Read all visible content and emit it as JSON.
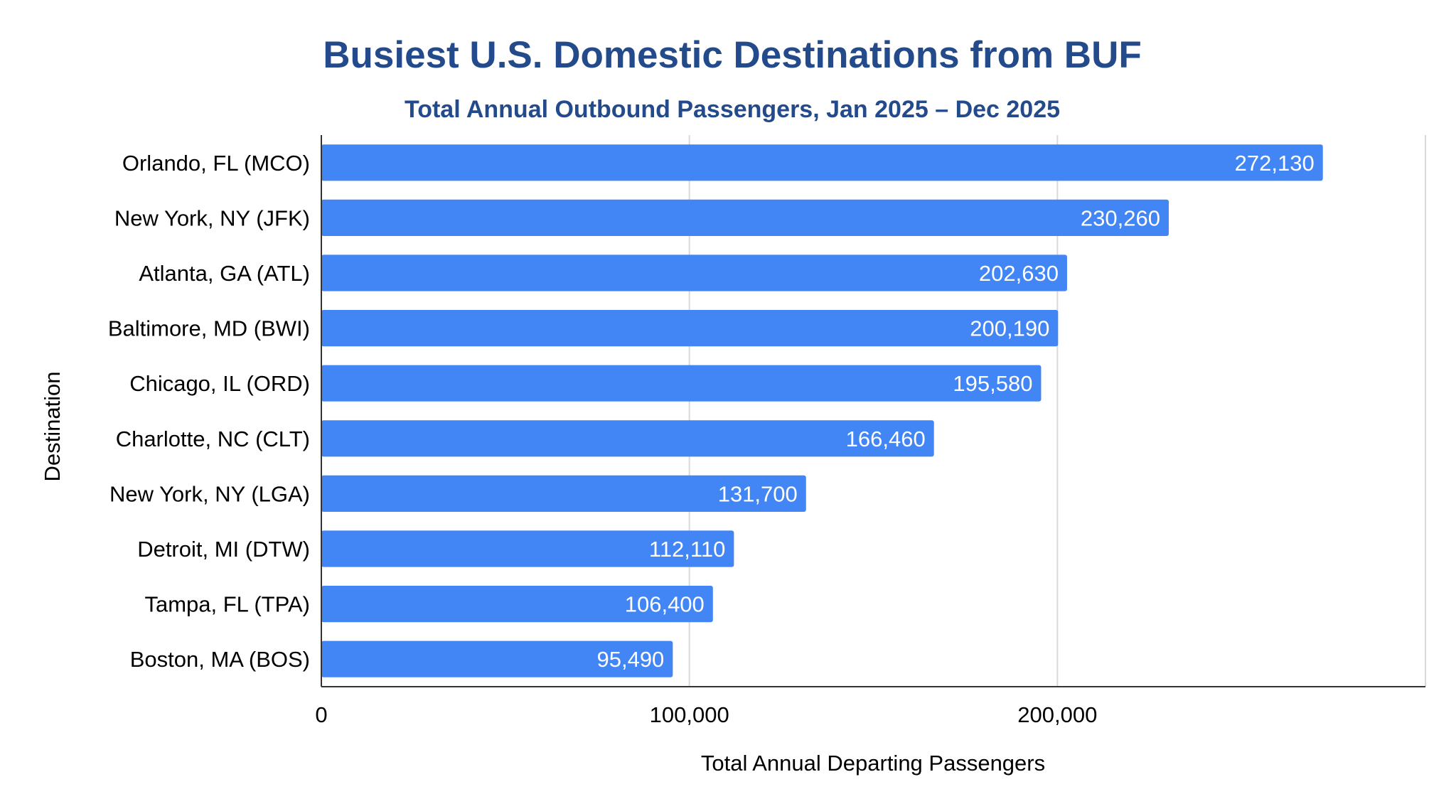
{
  "chart_data": {
    "type": "bar",
    "orientation": "horizontal",
    "title": "Busiest U.S. Domestic Destinations from BUF",
    "subtitle": "Total Annual Outbound Passengers, Jan 2025 – Dec 2025",
    "xlabel": "Total Annual Departing Passengers",
    "ylabel": "Destination",
    "xlim": [
      0,
      300000
    ],
    "x_ticks": [
      0,
      100000,
      200000
    ],
    "x_tick_labels": [
      "0",
      "100,000",
      "200,000"
    ],
    "grid": true,
    "legend": "none",
    "categories": [
      "Orlando, FL (MCO)",
      "New York, NY (JFK)",
      "Atlanta, GA (ATL)",
      "Baltimore, MD (BWI)",
      "Chicago, IL (ORD)",
      "Charlotte, NC (CLT)",
      "New York, NY (LGA)",
      "Detroit, MI (DTW)",
      "Tampa, FL (TPA)",
      "Boston, MA (BOS)"
    ],
    "values": [
      272130,
      230260,
      202630,
      200190,
      195580,
      166460,
      131700,
      112110,
      106400,
      95490
    ],
    "value_labels": [
      "272,130",
      "230,260",
      "202,630",
      "200,190",
      "195,580",
      "166,460",
      "131,700",
      "112,110",
      "106,400",
      "95,490"
    ],
    "colors": {
      "bar": "#4285f4",
      "title": "#234a8a",
      "text": "#000000",
      "value_label": "#ffffff",
      "grid": "#d9d9d9",
      "axis": "#333333"
    }
  }
}
